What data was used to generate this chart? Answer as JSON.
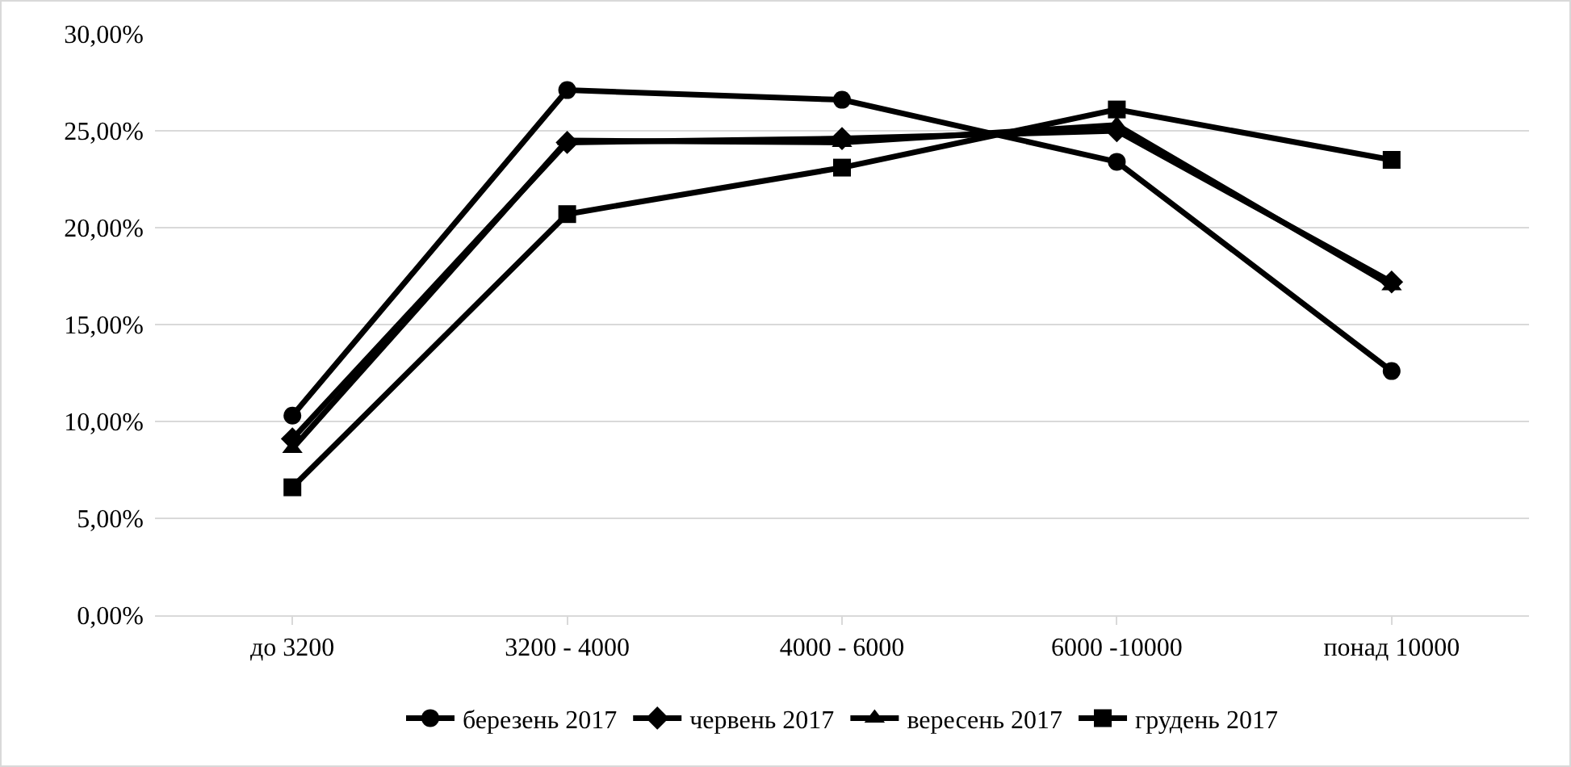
{
  "chart_data": {
    "type": "line",
    "categories": [
      "до 3200",
      "3200 - 4000",
      "4000 - 6000",
      "6000 -10000",
      "понад 10000"
    ],
    "series": [
      {
        "name": "березень 2017",
        "color": "#000000",
        "marker": "circle",
        "values": [
          10.3,
          27.1,
          26.6,
          23.4,
          12.6
        ]
      },
      {
        "name": "червень 2017",
        "color": "#000000",
        "marker": "diamond",
        "values": [
          9.1,
          24.4,
          24.6,
          25.0,
          17.2
        ]
      },
      {
        "name": "вересень 2017",
        "color": "#000000",
        "marker": "triangle",
        "values": [
          8.6,
          24.5,
          24.4,
          25.3,
          17.0
        ]
      },
      {
        "name": "грудень 2017",
        "color": "#000000",
        "marker": "square",
        "values": [
          6.6,
          20.7,
          23.1,
          26.1,
          23.5
        ]
      }
    ],
    "ylim": [
      0,
      30
    ],
    "yticks": [
      {
        "value": 0,
        "label": "0,00%"
      },
      {
        "value": 5,
        "label": "5,00%"
      },
      {
        "value": 10,
        "label": "10,00%"
      },
      {
        "value": 15,
        "label": "15,00%"
      },
      {
        "value": 20,
        "label": "20,00%"
      },
      {
        "value": 25,
        "label": "25,00%"
      },
      {
        "value": 30,
        "label": "30,00%"
      }
    ],
    "grid": "y",
    "legend": "bottom",
    "line_style": "solid"
  }
}
